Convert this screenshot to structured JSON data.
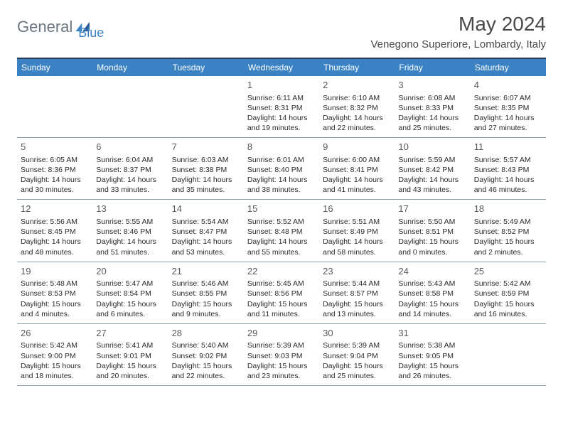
{
  "logo": {
    "text1": "General",
    "text2": "Blue"
  },
  "title": "May 2024",
  "location": "Venegono Superiore, Lombardy, Italy",
  "colors": {
    "header_bar": "#3b82c4",
    "header_text": "#ffffff",
    "top_border": "#2a3a5a",
    "row_border": "#8a98b0",
    "logo_gray": "#6b7680",
    "logo_blue": "#3b82c4",
    "title_color": "#4a4a4a"
  },
  "weekdays": [
    "Sunday",
    "Monday",
    "Tuesday",
    "Wednesday",
    "Thursday",
    "Friday",
    "Saturday"
  ],
  "weeks": [
    [
      null,
      null,
      null,
      {
        "n": "1",
        "sr": "6:11 AM",
        "ss": "8:31 PM",
        "dl": "14 hours and 19 minutes."
      },
      {
        "n": "2",
        "sr": "6:10 AM",
        "ss": "8:32 PM",
        "dl": "14 hours and 22 minutes."
      },
      {
        "n": "3",
        "sr": "6:08 AM",
        "ss": "8:33 PM",
        "dl": "14 hours and 25 minutes."
      },
      {
        "n": "4",
        "sr": "6:07 AM",
        "ss": "8:35 PM",
        "dl": "14 hours and 27 minutes."
      }
    ],
    [
      {
        "n": "5",
        "sr": "6:05 AM",
        "ss": "8:36 PM",
        "dl": "14 hours and 30 minutes."
      },
      {
        "n": "6",
        "sr": "6:04 AM",
        "ss": "8:37 PM",
        "dl": "14 hours and 33 minutes."
      },
      {
        "n": "7",
        "sr": "6:03 AM",
        "ss": "8:38 PM",
        "dl": "14 hours and 35 minutes."
      },
      {
        "n": "8",
        "sr": "6:01 AM",
        "ss": "8:40 PM",
        "dl": "14 hours and 38 minutes."
      },
      {
        "n": "9",
        "sr": "6:00 AM",
        "ss": "8:41 PM",
        "dl": "14 hours and 41 minutes."
      },
      {
        "n": "10",
        "sr": "5:59 AM",
        "ss": "8:42 PM",
        "dl": "14 hours and 43 minutes."
      },
      {
        "n": "11",
        "sr": "5:57 AM",
        "ss": "8:43 PM",
        "dl": "14 hours and 46 minutes."
      }
    ],
    [
      {
        "n": "12",
        "sr": "5:56 AM",
        "ss": "8:45 PM",
        "dl": "14 hours and 48 minutes."
      },
      {
        "n": "13",
        "sr": "5:55 AM",
        "ss": "8:46 PM",
        "dl": "14 hours and 51 minutes."
      },
      {
        "n": "14",
        "sr": "5:54 AM",
        "ss": "8:47 PM",
        "dl": "14 hours and 53 minutes."
      },
      {
        "n": "15",
        "sr": "5:52 AM",
        "ss": "8:48 PM",
        "dl": "14 hours and 55 minutes."
      },
      {
        "n": "16",
        "sr": "5:51 AM",
        "ss": "8:49 PM",
        "dl": "14 hours and 58 minutes."
      },
      {
        "n": "17",
        "sr": "5:50 AM",
        "ss": "8:51 PM",
        "dl": "15 hours and 0 minutes."
      },
      {
        "n": "18",
        "sr": "5:49 AM",
        "ss": "8:52 PM",
        "dl": "15 hours and 2 minutes."
      }
    ],
    [
      {
        "n": "19",
        "sr": "5:48 AM",
        "ss": "8:53 PM",
        "dl": "15 hours and 4 minutes."
      },
      {
        "n": "20",
        "sr": "5:47 AM",
        "ss": "8:54 PM",
        "dl": "15 hours and 6 minutes."
      },
      {
        "n": "21",
        "sr": "5:46 AM",
        "ss": "8:55 PM",
        "dl": "15 hours and 9 minutes."
      },
      {
        "n": "22",
        "sr": "5:45 AM",
        "ss": "8:56 PM",
        "dl": "15 hours and 11 minutes."
      },
      {
        "n": "23",
        "sr": "5:44 AM",
        "ss": "8:57 PM",
        "dl": "15 hours and 13 minutes."
      },
      {
        "n": "24",
        "sr": "5:43 AM",
        "ss": "8:58 PM",
        "dl": "15 hours and 14 minutes."
      },
      {
        "n": "25",
        "sr": "5:42 AM",
        "ss": "8:59 PM",
        "dl": "15 hours and 16 minutes."
      }
    ],
    [
      {
        "n": "26",
        "sr": "5:42 AM",
        "ss": "9:00 PM",
        "dl": "15 hours and 18 minutes."
      },
      {
        "n": "27",
        "sr": "5:41 AM",
        "ss": "9:01 PM",
        "dl": "15 hours and 20 minutes."
      },
      {
        "n": "28",
        "sr": "5:40 AM",
        "ss": "9:02 PM",
        "dl": "15 hours and 22 minutes."
      },
      {
        "n": "29",
        "sr": "5:39 AM",
        "ss": "9:03 PM",
        "dl": "15 hours and 23 minutes."
      },
      {
        "n": "30",
        "sr": "5:39 AM",
        "ss": "9:04 PM",
        "dl": "15 hours and 25 minutes."
      },
      {
        "n": "31",
        "sr": "5:38 AM",
        "ss": "9:05 PM",
        "dl": "15 hours and 26 minutes."
      },
      null
    ]
  ],
  "labels": {
    "sunrise": "Sunrise:",
    "sunset": "Sunset:",
    "daylight": "Daylight:"
  }
}
